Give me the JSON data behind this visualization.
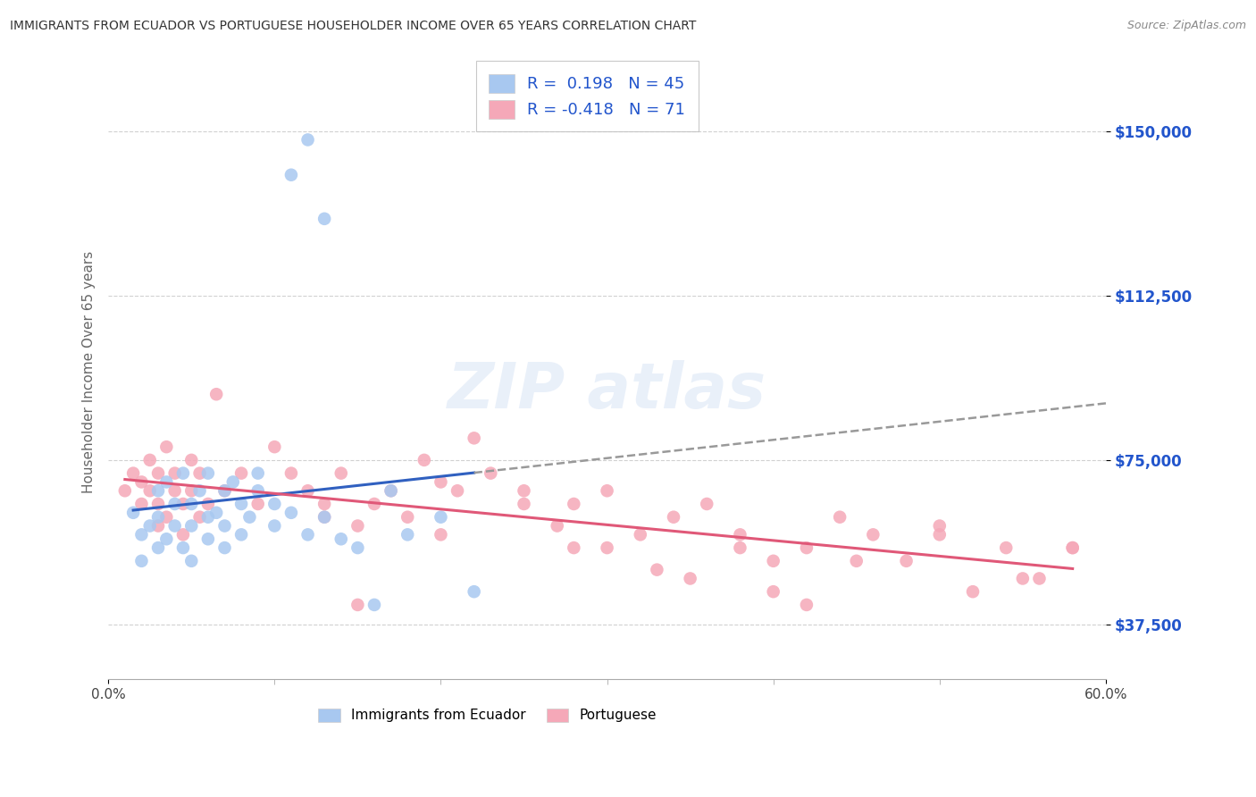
{
  "title": "IMMIGRANTS FROM ECUADOR VS PORTUGUESE HOUSEHOLDER INCOME OVER 65 YEARS CORRELATION CHART",
  "source": "Source: ZipAtlas.com",
  "ylabel": "Householder Income Over 65 years",
  "xlim": [
    0.0,
    0.6
  ],
  "ylim": [
    25000,
    165000
  ],
  "yticks": [
    37500,
    75000,
    112500,
    150000
  ],
  "ytick_labels": [
    "$37,500",
    "$75,000",
    "$112,500",
    "$150,000"
  ],
  "xtick_positions": [
    0.0,
    0.6
  ],
  "xtick_labels": [
    "0.0%",
    "60.0%"
  ],
  "ecuador_R": 0.198,
  "ecuador_N": 45,
  "portuguese_R": -0.418,
  "portuguese_N": 71,
  "ecuador_color": "#a8c8f0",
  "portuguese_color": "#f5a8b8",
  "ecuador_line_color": "#3060c0",
  "portuguese_line_color": "#e05878",
  "background_color": "#ffffff",
  "grid_color": "#cccccc",
  "legend_text_color": "#2255cc",
  "ecuador_x": [
    0.015,
    0.02,
    0.02,
    0.025,
    0.03,
    0.03,
    0.03,
    0.035,
    0.035,
    0.04,
    0.04,
    0.045,
    0.045,
    0.05,
    0.05,
    0.05,
    0.055,
    0.06,
    0.06,
    0.06,
    0.065,
    0.07,
    0.07,
    0.07,
    0.075,
    0.08,
    0.08,
    0.085,
    0.09,
    0.09,
    0.1,
    0.1,
    0.11,
    0.12,
    0.13,
    0.14,
    0.15,
    0.16,
    0.17,
    0.18,
    0.2,
    0.22,
    0.11,
    0.12,
    0.13
  ],
  "ecuador_y": [
    63000,
    58000,
    52000,
    60000,
    68000,
    62000,
    55000,
    57000,
    70000,
    65000,
    60000,
    72000,
    55000,
    65000,
    60000,
    52000,
    68000,
    72000,
    62000,
    57000,
    63000,
    68000,
    60000,
    55000,
    70000,
    65000,
    58000,
    62000,
    68000,
    72000,
    65000,
    60000,
    63000,
    58000,
    62000,
    57000,
    55000,
    42000,
    68000,
    58000,
    62000,
    45000,
    140000,
    148000,
    130000
  ],
  "portuguese_x": [
    0.01,
    0.015,
    0.02,
    0.02,
    0.025,
    0.025,
    0.03,
    0.03,
    0.03,
    0.035,
    0.035,
    0.04,
    0.04,
    0.045,
    0.045,
    0.05,
    0.05,
    0.055,
    0.055,
    0.06,
    0.065,
    0.07,
    0.08,
    0.09,
    0.1,
    0.11,
    0.12,
    0.13,
    0.14,
    0.15,
    0.16,
    0.17,
    0.18,
    0.19,
    0.2,
    0.21,
    0.22,
    0.23,
    0.25,
    0.27,
    0.28,
    0.3,
    0.32,
    0.34,
    0.36,
    0.38,
    0.4,
    0.42,
    0.44,
    0.46,
    0.48,
    0.5,
    0.52,
    0.54,
    0.56,
    0.58,
    0.13,
    0.15,
    0.2,
    0.25,
    0.3,
    0.35,
    0.4,
    0.45,
    0.5,
    0.55,
    0.58,
    0.42,
    0.38,
    0.33,
    0.28
  ],
  "portuguese_y": [
    68000,
    72000,
    70000,
    65000,
    75000,
    68000,
    72000,
    65000,
    60000,
    78000,
    62000,
    68000,
    72000,
    65000,
    58000,
    75000,
    68000,
    72000,
    62000,
    65000,
    90000,
    68000,
    72000,
    65000,
    78000,
    72000,
    68000,
    65000,
    72000,
    60000,
    65000,
    68000,
    62000,
    75000,
    70000,
    68000,
    80000,
    72000,
    68000,
    60000,
    65000,
    68000,
    58000,
    62000,
    65000,
    55000,
    52000,
    55000,
    62000,
    58000,
    52000,
    60000,
    45000,
    55000,
    48000,
    55000,
    62000,
    42000,
    58000,
    65000,
    55000,
    48000,
    45000,
    52000,
    58000,
    48000,
    55000,
    42000,
    58000,
    50000,
    55000
  ]
}
